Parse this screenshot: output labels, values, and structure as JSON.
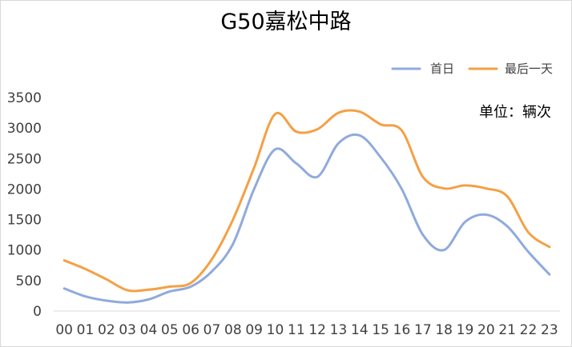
{
  "chart_data": {
    "type": "line",
    "title": "G50嘉松中路",
    "unit_note": "单位：辆次",
    "categories": [
      "00",
      "01",
      "02",
      "03",
      "04",
      "05",
      "06",
      "07",
      "08",
      "09",
      "10",
      "11",
      "12",
      "13",
      "14",
      "15",
      "16",
      "17",
      "18",
      "19",
      "20",
      "21",
      "22",
      "23"
    ],
    "ylim": [
      0,
      3500
    ],
    "yticks": [
      0,
      500,
      1000,
      1500,
      2000,
      2500,
      3000,
      3500
    ],
    "grid": false,
    "legend_position": "top-right",
    "series": [
      {
        "name": "首日",
        "color": "#8faadc",
        "values": [
          370,
          240,
          170,
          140,
          190,
          320,
          400,
          650,
          1100,
          2000,
          2650,
          2420,
          2200,
          2750,
          2880,
          2520,
          2000,
          1250,
          1000,
          1460,
          1580,
          1390,
          970,
          600
        ]
      },
      {
        "name": "最后一天",
        "color": "#f4a045",
        "values": [
          830,
          690,
          520,
          340,
          350,
          400,
          460,
          850,
          1500,
          2350,
          3230,
          2940,
          2980,
          3250,
          3270,
          3060,
          2960,
          2200,
          2010,
          2060,
          2010,
          1880,
          1290,
          1050
        ]
      }
    ]
  }
}
